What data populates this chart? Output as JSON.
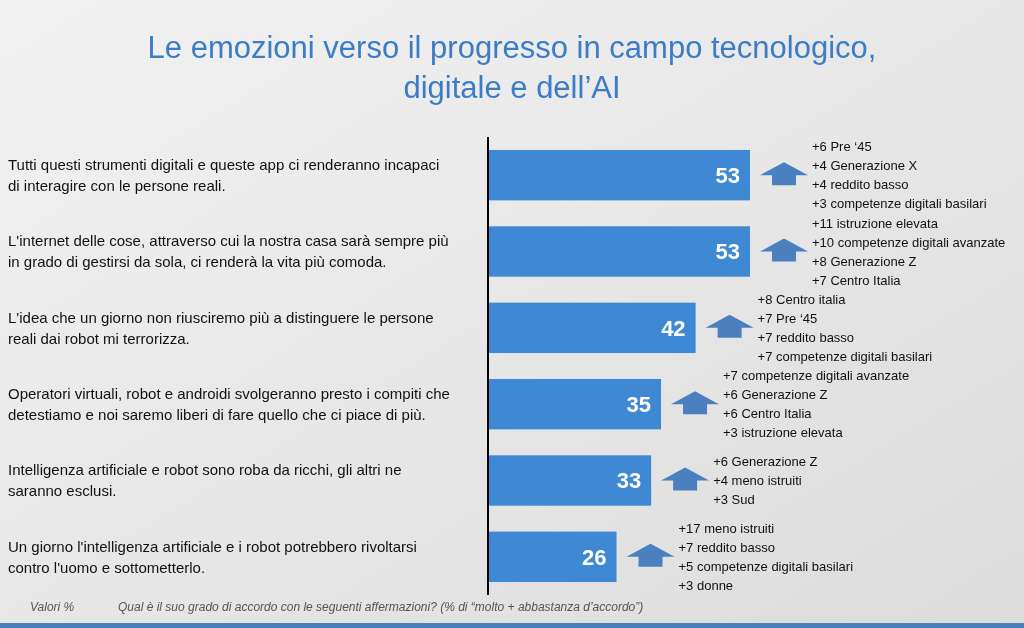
{
  "chart_data": {
    "type": "bar",
    "orientation": "horizontal",
    "title": "Le emozioni verso il progresso in campo tecnologico,\ndigitale e dell’AI",
    "categories": [
      "Tutti questi strumenti digitali e queste app ci renderanno incapaci di interagire con le persone reali.",
      "L'internet delle cose, attraverso cui la nostra casa sarà sempre più in grado di gestirsi da sola, ci renderà la vita più comoda.",
      "L'idea che un giorno non riusciremo più a distinguere le persone reali dai robot mi terrorizza.",
      "Operatori virtuali, robot e androidi svolgeranno presto i compiti che detestiamo e noi saremo liberi di fare quello che ci piace di più.",
      "Intelligenza artificiale e robot sono roba da ricchi, gli altri ne saranno esclusi.",
      "Un giorno l'intelligenza artificiale e i robot potrebbero rivoltarsi contro l'uomo e sottometterlo."
    ],
    "values": [
      53,
      53,
      42,
      35,
      33,
      26
    ],
    "color": "#3f88d4",
    "data_labels": true,
    "annotations": [
      "+6 Pre ‘45\n+4 Generazione X\n+4 reddito basso\n+3 competenze digitali basilari",
      "+11 istruzione elevata\n+10 competenze digitali avanzate\n+8 Generazione Z\n+7 Centro Italia",
      "+8 Centro italia\n+7 Pre ‘45\n+7 reddito basso\n+7 competenze digitali basilari",
      "+7 competenze digitali avanzate\n+6 Generazione Z\n+6 Centro Italia\n+3 istruzione elevata",
      "+6 Generazione Z\n+4 meno istruiti\n+3 Sud",
      "+17 meno istruiti\n+7 reddito basso\n+5 competenze digitali basilari\n+3 donne",
      "Valori %",
      "Qual è il suo grado di accordo con le seguenti affermazioni? (% di “molto + abbastanza d’accordo”)"
    ]
  }
}
